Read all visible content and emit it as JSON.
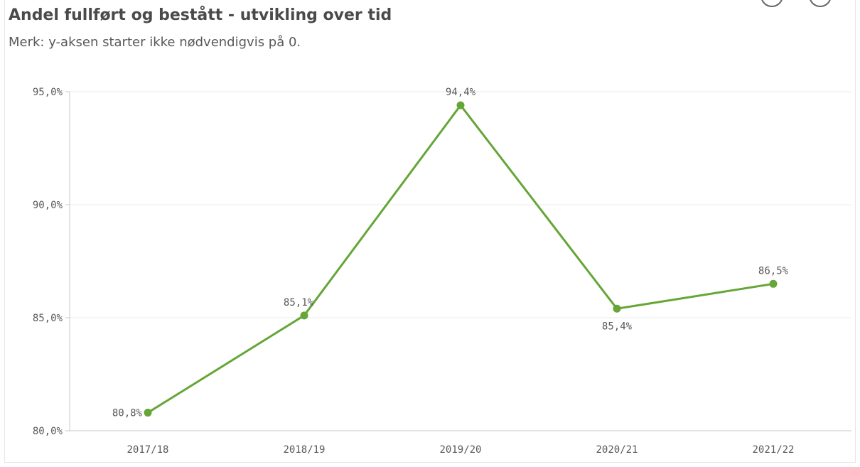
{
  "header": {
    "title": "Andel fullført og bestått - utvikling over tid",
    "subtitle": "Merk: y-aksen starter ikke nødvendigvis på 0."
  },
  "colors": {
    "series": "#65a637",
    "grid": "#ebebeb",
    "axis": "#c8c8c8",
    "text": "#595959"
  },
  "chart_data": {
    "type": "line",
    "title": "Andel fullført og bestått - utvikling over tid",
    "subtitle": "Merk: y-aksen starter ikke nødvendigvis på 0.",
    "categories": [
      "2017/18",
      "2018/19",
      "2019/20",
      "2020/21",
      "2021/22"
    ],
    "series": [
      {
        "values": [
          80.8,
          85.1,
          94.4,
          85.4,
          86.5
        ],
        "labels": [
          "80,8%",
          "85,1%",
          "94,4%",
          "85,4%",
          "86,5%"
        ]
      }
    ],
    "ylim": [
      80,
      95
    ],
    "yticks": [
      80,
      85,
      90,
      95
    ],
    "ytick_labels": [
      "80,0%",
      "85,0%",
      "90,0%",
      "95,0%"
    ],
    "grid": true,
    "legend": "none"
  }
}
